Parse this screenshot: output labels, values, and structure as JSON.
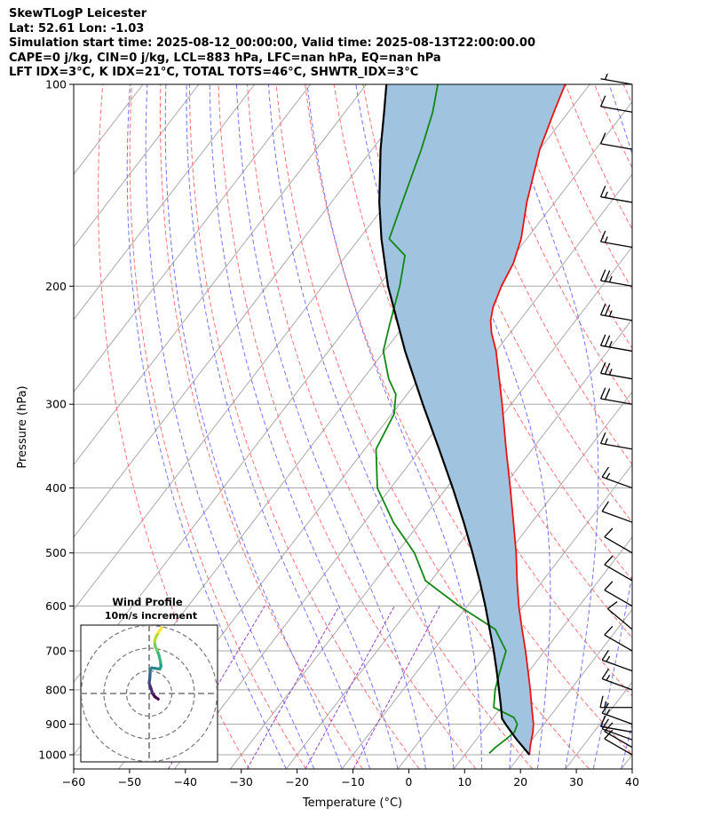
{
  "header": {
    "line1": "SkewTLogP Leicester",
    "line2": "Lat: 52.61   Lon: -1.03",
    "line3": "Simulation start time: 2025-08-12_00:00:00, Valid time: 2025-08-13T22:00:00.00",
    "line4": "CAPE=0 j/kg, CIN=0 j/kg, LCL=883 hPa, LFC=nan hPa, EQ=nan hPa",
    "line5": "LFT IDX=3°C, K IDX=21°C, TOTAL TOTS=46°C, SHWTR_IDX=3°C"
  },
  "colors": {
    "temperature": "#ee1111",
    "dewpoint": "#118811",
    "parcel": "#000000",
    "fill": "#a0c4df",
    "dry_adiabat": "#ff6060",
    "moist_adiabat": "#5a5aff",
    "mixing_ratio": "#9b40c8",
    "isotherm": "#aaaaaa",
    "isobar": "#aaaaaa"
  },
  "chart_data": {
    "type": "line",
    "xlabel": "Temperature (°C)",
    "ylabel": "Pressure (hPa)",
    "xlim": [
      -60,
      40
    ],
    "ylim": [
      1050,
      100
    ],
    "x_ticks": [
      "−60",
      "−50",
      "−40",
      "−30",
      "−20",
      "−10",
      "0",
      "10",
      "20",
      "30",
      "40"
    ],
    "y_ticks": [
      "100",
      "200",
      "300",
      "400",
      "500",
      "600",
      "700",
      "800",
      "900",
      "1000"
    ],
    "skew": 28,
    "series": [
      {
        "name": "Temperature",
        "pressure": [
          1000,
          975,
          950,
          925,
          900,
          850,
          800,
          750,
          700,
          650,
          600,
          550,
          500,
          450,
          400,
          350,
          300,
          275,
          250,
          235,
          225,
          215,
          200,
          185,
          170,
          150,
          125,
          110,
          100
        ],
        "temp": [
          21.6,
          20.7,
          19.9,
          19.1,
          18.1,
          15.5,
          12.8,
          9.8,
          6.6,
          3.0,
          -0.8,
          -4.6,
          -8.6,
          -13.3,
          -18.6,
          -24.7,
          -31.6,
          -35.6,
          -40.0,
          -43.3,
          -45.2,
          -46.6,
          -48.0,
          -49.0,
          -51.0,
          -55.0,
          -60.0,
          -62.6,
          -64.4
        ]
      },
      {
        "name": "Dewpoint",
        "pressure": [
          995,
          975,
          950,
          925,
          900,
          880,
          850,
          800,
          750,
          700,
          650,
          600,
          550,
          500,
          450,
          400,
          350,
          310,
          300,
          290,
          275,
          250,
          230,
          200,
          180,
          170,
          150,
          125,
          110,
          100
        ],
        "temp": [
          14.2,
          14.5,
          15.2,
          15.8,
          15.2,
          13.7,
          8.7,
          6.5,
          4.8,
          3.1,
          -1.8,
          -11.5,
          -21.0,
          -26.8,
          -34.8,
          -42.4,
          -48.0,
          -49.6,
          -50.8,
          -52.0,
          -55.4,
          -60.2,
          -62.5,
          -66.2,
          -69.5,
          -74.6,
          -77.3,
          -81.2,
          -84.3,
          -87.2
        ]
      },
      {
        "name": "Parcel",
        "pressure": [
          1000,
          975,
          950,
          925,
          900,
          883,
          850,
          800,
          750,
          700,
          650,
          600,
          550,
          500,
          450,
          400,
          350,
          300,
          250,
          200,
          170,
          150,
          125,
          110,
          100
        ],
        "temp": [
          21.6,
          19.5,
          17.3,
          15.2,
          13.1,
          11.7,
          10.0,
          7.2,
          4.2,
          0.9,
          -2.8,
          -6.8,
          -11.3,
          -16.4,
          -22.2,
          -28.9,
          -36.7,
          -45.8,
          -56.3,
          -68.3,
          -76.0,
          -81.4,
          -88.5,
          -93.0,
          -96.4
        ]
      }
    ],
    "wind_barbs": {
      "pressure": [
        1000,
        975,
        950,
        925,
        900,
        850,
        800,
        750,
        700,
        650,
        600,
        550,
        500,
        450,
        400,
        350,
        300,
        275,
        250,
        225,
        200,
        175,
        150,
        125,
        110,
        100
      ],
      "speed_kt": [
        10,
        10,
        10,
        10,
        15,
        15,
        15,
        15,
        10,
        10,
        10,
        10,
        10,
        10,
        15,
        15,
        20,
        25,
        25,
        25,
        25,
        15,
        15,
        10,
        10,
        5
      ],
      "direction_deg": [
        300,
        300,
        290,
        280,
        290,
        270,
        290,
        290,
        300,
        310,
        300,
        300,
        300,
        290,
        290,
        280,
        280,
        280,
        280,
        280,
        280,
        280,
        280,
        280,
        280,
        280
      ]
    },
    "hodograph": {
      "title": "Wind Profile",
      "subtitle": "10m/s increment",
      "rings_ms": [
        10,
        20,
        30
      ],
      "u": [
        4,
        2.5,
        1.5,
        0.8,
        0.2,
        0,
        0.3,
        0.4,
        0.4,
        1.1,
        4.7,
        5.2,
        5.0,
        4.3,
        3.5,
        2.6,
        2.4,
        3.0,
        4.2,
        5.5
      ],
      "v": [
        -2.5,
        -1.4,
        0.0,
        2.2,
        4.0,
        4.7,
        6.8,
        8.6,
        10.5,
        11.3,
        10.8,
        12.0,
        14.0,
        17.0,
        19.0,
        21.0,
        23.0,
        25.0,
        27.0,
        29.0
      ]
    }
  }
}
